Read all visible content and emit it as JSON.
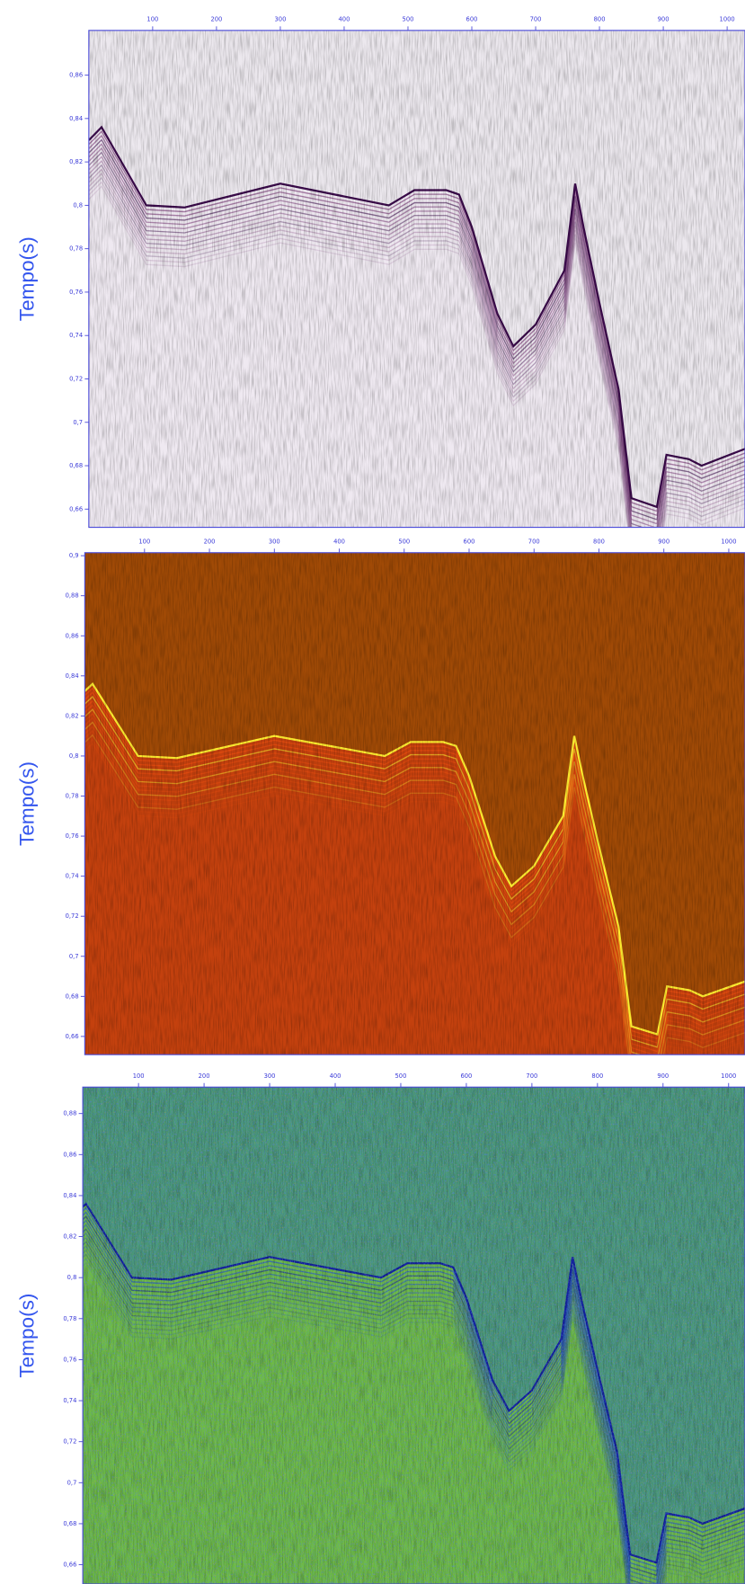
{
  "chart_data": [
    {
      "type": "seismic",
      "ylabel": "Tempo(s)",
      "colormap": [
        "#ece8ee",
        "#efe9f1",
        "#7a3a78",
        "#3a0a4a"
      ],
      "xlim": [
        0,
        1028
      ],
      "ylim": [
        0.6516,
        0.8806
      ],
      "xticks": [
        100,
        200,
        300,
        400,
        500,
        600,
        700,
        800,
        900,
        1000
      ],
      "yticks": [
        {
          "value": 0.66,
          "label": "0,66"
        },
        {
          "value": 0.68,
          "label": "0,68"
        },
        {
          "value": 0.7,
          "label": "0,7"
        },
        {
          "value": 0.72,
          "label": "0,72"
        },
        {
          "value": 0.74,
          "label": "0,74"
        },
        {
          "value": 0.76,
          "label": "0,76"
        },
        {
          "value": 0.78,
          "label": "0,78"
        },
        {
          "value": 0.8,
          "label": "0,8"
        },
        {
          "value": 0.82,
          "label": "0,82"
        },
        {
          "value": 0.84,
          "label": "0,84"
        },
        {
          "value": 0.86,
          "label": "0,86"
        }
      ]
    },
    {
      "type": "seismic",
      "ylabel": "Tempo(s)",
      "colormap": [
        "#a04a06",
        "#c84010",
        "#f05010",
        "#ffee30"
      ],
      "xlim": [
        8,
        1025
      ],
      "ylim": [
        0.6509,
        0.9015
      ],
      "xticks": [
        100,
        200,
        300,
        400,
        500,
        600,
        700,
        800,
        900,
        1000
      ],
      "yticks": [
        {
          "value": 0.66,
          "label": "0,66"
        },
        {
          "value": 0.68,
          "label": "0,68"
        },
        {
          "value": 0.7,
          "label": "0,7"
        },
        {
          "value": 0.72,
          "label": "0,72"
        },
        {
          "value": 0.74,
          "label": "0,74"
        },
        {
          "value": 0.76,
          "label": "0,76"
        },
        {
          "value": 0.78,
          "label": "0,78"
        },
        {
          "value": 0.8,
          "label": "0,8"
        },
        {
          "value": 0.82,
          "label": "0,82"
        },
        {
          "value": 0.84,
          "label": "0,84"
        },
        {
          "value": 0.86,
          "label": "0,86"
        },
        {
          "value": 0.88,
          "label": "0,88"
        },
        {
          "value": 0.9,
          "label": "0,9"
        }
      ]
    },
    {
      "type": "seismic",
      "ylabel": "Tempo(s)",
      "colormap": [
        "#4a9a7a",
        "#70c040",
        "#2050d0",
        "#1020a0"
      ],
      "xlim": [
        15,
        1025
      ],
      "ylim": [
        0.6506,
        0.8929
      ],
      "xticks": [
        100,
        200,
        300,
        400,
        500,
        600,
        700,
        800,
        900,
        1000
      ],
      "yticks": [
        {
          "value": 0.66,
          "label": "0,66"
        },
        {
          "value": 0.68,
          "label": "0,68"
        },
        {
          "value": 0.7,
          "label": "0,7"
        },
        {
          "value": 0.72,
          "label": "0,72"
        },
        {
          "value": 0.74,
          "label": "0,74"
        },
        {
          "value": 0.76,
          "label": "0,76"
        },
        {
          "value": 0.78,
          "label": "0,78"
        },
        {
          "value": 0.8,
          "label": "0,8"
        },
        {
          "value": 0.82,
          "label": "0,82"
        },
        {
          "value": 0.84,
          "label": "0,84"
        },
        {
          "value": 0.86,
          "label": "0,86"
        },
        {
          "value": 0.88,
          "label": "0,88"
        }
      ]
    }
  ]
}
